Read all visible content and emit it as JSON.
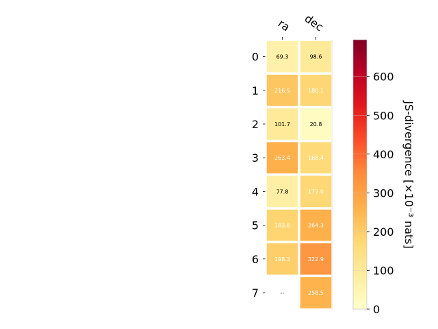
{
  "chart_data": {
    "type": "heatmap",
    "columns": [
      "ra",
      "dec"
    ],
    "rows": [
      "0",
      "1",
      "2",
      "3",
      "4",
      "5",
      "6",
      "7"
    ],
    "values": [
      [
        69.3,
        98.6
      ],
      [
        216.5,
        180.1
      ],
      [
        101.7,
        20.8
      ],
      [
        263.4,
        168.4
      ],
      [
        77.8,
        177.0
      ],
      [
        183.6,
        264.3
      ],
      [
        198.3,
        322.9
      ],
      [
        null,
        258.5
      ]
    ],
    "cell_labels": [
      [
        "69.3",
        "98.6"
      ],
      [
        "216.5",
        "180.1"
      ],
      [
        "101.7",
        "20.8"
      ],
      [
        "263.4",
        "168.4"
      ],
      [
        "77.8",
        "177.0"
      ],
      [
        "183.6",
        "264.3"
      ],
      [
        "198.3",
        "322.9"
      ],
      [
        "--",
        "258.5"
      ]
    ],
    "colorbar": {
      "label": "JS-divergence [×10⁻³ nats]",
      "range": [
        0,
        695
      ],
      "ticks": [
        0,
        100,
        200,
        300,
        400,
        500,
        600
      ],
      "colormap": "YlOrRd"
    },
    "colors": {
      "background": "#ffffff",
      "cell_border": "#ffffff"
    }
  }
}
